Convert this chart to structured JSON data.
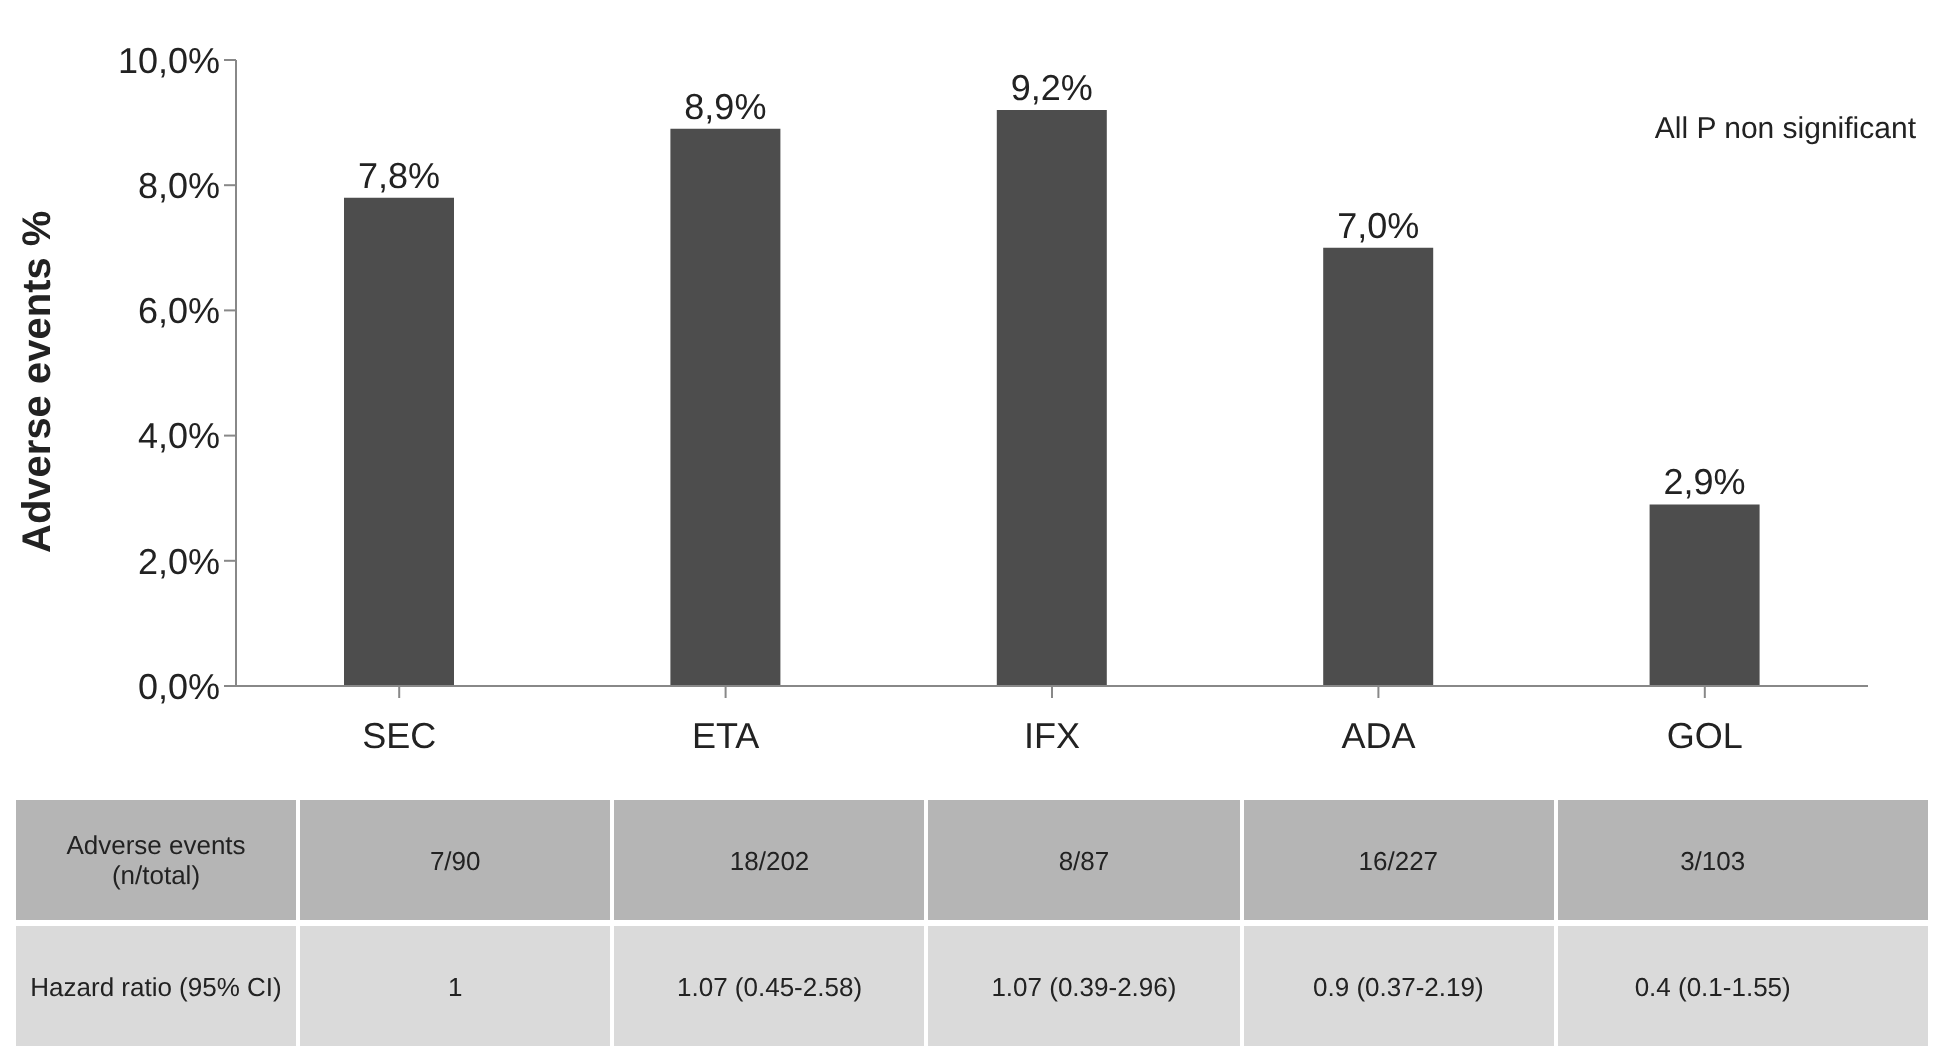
{
  "chart_data": {
    "type": "bar",
    "ylabel": "Adverse events %",
    "categories": [
      "SEC",
      "ETA",
      "IFX",
      "ADA",
      "GOL"
    ],
    "values": [
      7.8,
      8.9,
      9.2,
      7.0,
      2.9
    ],
    "value_labels": [
      "7,8%",
      "8,9%",
      "9,2%",
      "7,0%",
      "2,9%"
    ],
    "color": "#4d4d4d",
    "ylim": [
      0,
      10
    ],
    "yticks": [
      {
        "value": 0,
        "label": "0,0%"
      },
      {
        "value": 2,
        "label": "2,0%"
      },
      {
        "value": 4,
        "label": "4,0%"
      },
      {
        "value": 6,
        "label": "6,0%"
      },
      {
        "value": 8,
        "label": "8,0%"
      },
      {
        "value": 10,
        "label": "10,0%"
      }
    ],
    "grid": false,
    "legend": false,
    "annotations": [
      "All P non significant",
      "Adverse events (n/total)",
      "7/90",
      "18/202",
      "8/87",
      "16/227",
      "3/103",
      "Hazard ratio (95% CI)",
      "1",
      "1.07 (0.45-2.58)",
      "1.07 (0.39-2.96)",
      "0.9 (0.37-2.19)",
      "0.4 (0.1-1.55)"
    ]
  }
}
